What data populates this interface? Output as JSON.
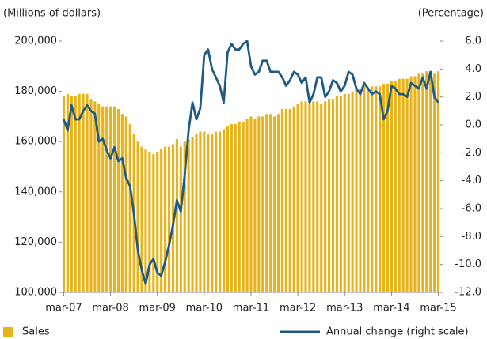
{
  "chart_data": {
    "type": "bar",
    "y_axis_label": "(Millions of dollars)",
    "y2_axis_label": "(Percentage)",
    "categories": [
      "mar-07",
      null,
      null,
      null,
      null,
      null,
      null,
      null,
      null,
      null,
      null,
      null,
      "mar-08",
      null,
      null,
      null,
      null,
      null,
      null,
      null,
      null,
      null,
      null,
      null,
      "mar-09",
      null,
      null,
      null,
      null,
      null,
      null,
      null,
      null,
      null,
      null,
      null,
      "mar-10",
      null,
      null,
      null,
      null,
      null,
      null,
      null,
      null,
      null,
      null,
      null,
      "mar-11",
      null,
      null,
      null,
      null,
      null,
      null,
      null,
      null,
      null,
      null,
      null,
      "mar-12",
      null,
      null,
      null,
      null,
      null,
      null,
      null,
      null,
      null,
      null,
      null,
      "mar-13",
      null,
      null,
      null,
      null,
      null,
      null,
      null,
      null,
      null,
      null,
      null,
      "mar-14",
      null,
      null,
      null,
      null,
      null,
      null,
      null,
      null,
      null,
      null,
      null,
      "mar-15"
    ],
    "series": [
      {
        "name": "Sales",
        "type": "bar",
        "color": "#e8b31a",
        "values": [
          178000,
          179000,
          178000,
          178000,
          179000,
          179000,
          179000,
          177000,
          176000,
          175000,
          174000,
          174000,
          174000,
          174000,
          173000,
          171000,
          170000,
          167000,
          163000,
          160000,
          158000,
          157000,
          156000,
          155000,
          156000,
          157000,
          158000,
          158000,
          159000,
          161000,
          158000,
          160000,
          161000,
          162000,
          163000,
          164000,
          164000,
          163000,
          163000,
          164000,
          164000,
          165000,
          166000,
          167000,
          167000,
          168000,
          168000,
          169000,
          170000,
          169000,
          170000,
          170000,
          171000,
          171000,
          170000,
          171000,
          173000,
          173000,
          173000,
          174000,
          175000,
          176000,
          176000,
          175000,
          176000,
          176000,
          175000,
          176000,
          177000,
          177000,
          178000,
          178000,
          179000,
          179000,
          180000,
          181000,
          181000,
          182000,
          181000,
          182000,
          182000,
          182000,
          183000,
          183000,
          184000,
          184000,
          185000,
          185000,
          185000,
          186000,
          186000,
          187000,
          187000,
          188000,
          188000,
          187000,
          188000
        ]
      },
      {
        "name": "Annual change (right scale)",
        "type": "line",
        "axis": "y2",
        "color": "#1f5a85",
        "values": [
          0.4,
          -0.4,
          1.4,
          0.4,
          0.4,
          1.0,
          1.4,
          1.0,
          0.8,
          -1.2,
          -1.0,
          -1.8,
          -2.4,
          -1.6,
          -2.6,
          -2.4,
          -3.8,
          -4.4,
          -6.4,
          -9.0,
          -10.4,
          -11.4,
          -10.0,
          -9.6,
          -10.6,
          -10.8,
          -9.8,
          -8.6,
          -7.2,
          -5.4,
          -6.2,
          -3.6,
          -0.4,
          1.6,
          0.4,
          1.2,
          5.0,
          5.4,
          4.0,
          3.4,
          2.8,
          1.6,
          5.2,
          5.8,
          5.4,
          5.4,
          5.8,
          6.0,
          4.2,
          3.6,
          3.8,
          4.6,
          4.6,
          3.8,
          3.8,
          3.8,
          3.4,
          2.8,
          3.2,
          3.8,
          3.6,
          3.0,
          3.4,
          1.6,
          2.2,
          3.4,
          3.4,
          2.0,
          2.4,
          3.2,
          3.0,
          2.4,
          2.8,
          3.8,
          3.6,
          2.6,
          2.2,
          3.0,
          2.6,
          2.2,
          2.4,
          2.2,
          0.4,
          1.0,
          2.8,
          2.6,
          2.2,
          2.2,
          2.0,
          3.0,
          2.8,
          2.6,
          3.4,
          2.6,
          3.8,
          2.0,
          1.6
        ]
      }
    ],
    "ylim": [
      100000,
      200000
    ],
    "yticks": [
      {
        "value": 100000,
        "label": "100,000"
      },
      {
        "value": 120000,
        "label": "120,000"
      },
      {
        "value": 140000,
        "label": "140,000"
      },
      {
        "value": 160000,
        "label": "160,000"
      },
      {
        "value": 180000,
        "label": "180,000"
      },
      {
        "value": 200000,
        "label": "200,000"
      }
    ],
    "y2lim": [
      -12,
      6
    ],
    "y2ticks": [
      {
        "value": -12,
        "label": "-12.0"
      },
      {
        "value": -10,
        "label": "-10.0"
      },
      {
        "value": -8,
        "label": "-8.0"
      },
      {
        "value": -6,
        "label": "-6.0"
      },
      {
        "value": -4,
        "label": "-4.0"
      },
      {
        "value": -2,
        "label": "-2.0"
      },
      {
        "value": 0,
        "label": "0.0"
      },
      {
        "value": 2,
        "label": "2.0"
      },
      {
        "value": 4,
        "label": "4.0"
      },
      {
        "value": 6,
        "label": "6.0"
      }
    ],
    "grid": false
  }
}
